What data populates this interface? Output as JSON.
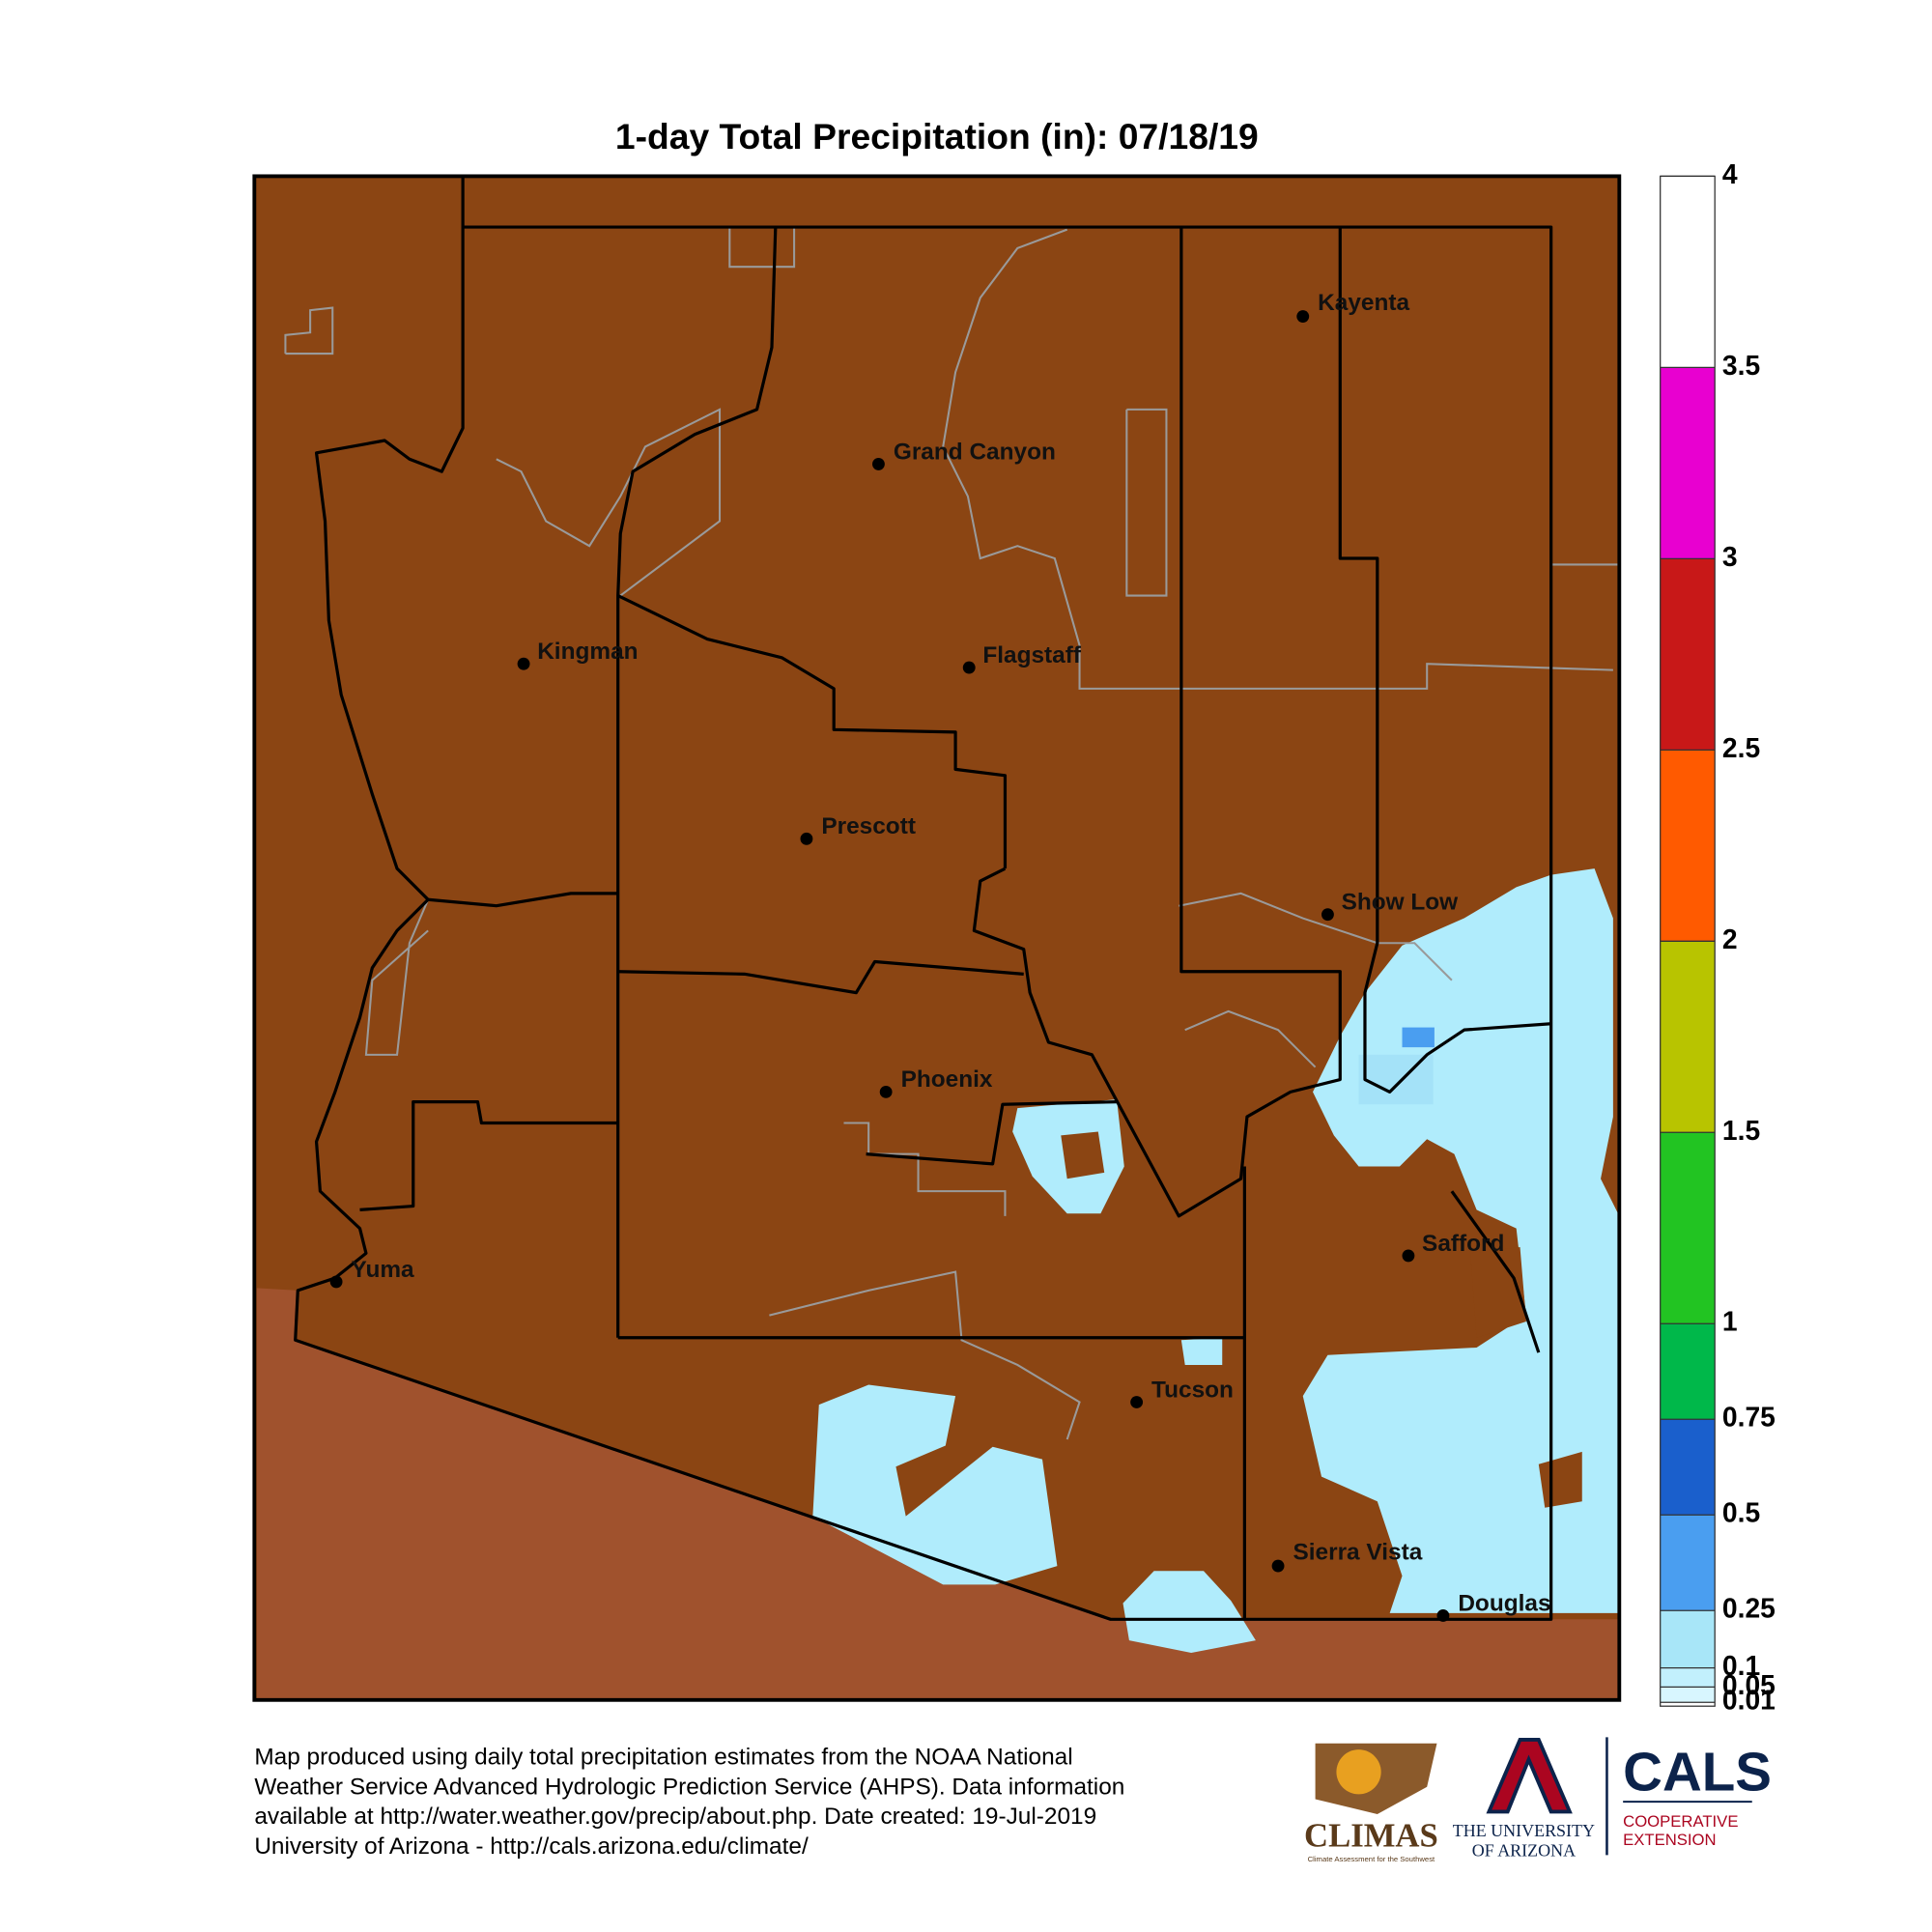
{
  "title": "1-day Total Precipitation (in): 07/18/19",
  "cities": [
    "Kayenta",
    "Grand Canyon",
    "Kingman",
    "Flagstaff",
    "Prescott",
    "Show Low",
    "Phoenix",
    "Safford",
    "Yuma",
    "Tucson",
    "Sierra Vista",
    "Douglas"
  ],
  "colorbar": {
    "lim": [
      0,
      4
    ],
    "ticks": [
      0.01,
      0.05,
      0.1,
      0.25,
      0.5,
      0.75,
      1,
      1.5,
      2,
      2.5,
      3,
      3.5,
      4
    ],
    "colors": [
      "#d8f6ff",
      "#c2f0fd",
      "#a8e6f8",
      "#4a9ef0",
      "#1a5fcc",
      "#00b84a",
      "#22c422",
      "#b8c400",
      "#ff5a00",
      "#c81818",
      "#e800d0",
      "#ffffff"
    ]
  },
  "footer": [
    "Map produced using daily total precipitation estimates from the NOAA National",
    "Weather Service Advanced Hydrologic Prediction Service (AHPS). Data information",
    "available at http://water.weather.gov/precip/about.php. Date created: 19-Jul-2019",
    "University of Arizona - http://cals.arizona.edu/climate/"
  ],
  "logos": {
    "climas": "CLIMAS",
    "climas_tagline": "Climate Assessment for the Southwest",
    "ua": [
      "THE UNIVERSITY",
      "OF ARIZONA"
    ],
    "cals": "CALS",
    "cals_sub": [
      "COOPERATIVE",
      "EXTENSION"
    ]
  }
}
